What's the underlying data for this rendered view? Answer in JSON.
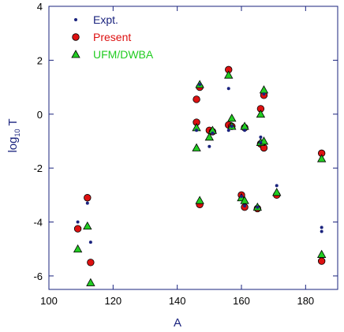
{
  "chart_data": {
    "type": "scatter",
    "xlabel": "A",
    "ylabel_main": "log",
    "ylabel_sub": "10",
    "ylabel_end": " T",
    "xlim": [
      100,
      190
    ],
    "ylim": [
      -6.5,
      4
    ],
    "xticks": [
      100,
      120,
      140,
      160,
      180
    ],
    "yticks": [
      -6,
      -4,
      -2,
      0,
      2,
      4
    ],
    "grid": false,
    "legend_position": "top-left",
    "series": [
      {
        "name": "Expt.",
        "marker": "small-dot",
        "color": "#1a237e",
        "text_color": "#1a237e",
        "points": [
          [
            109,
            -4.0
          ],
          [
            112,
            -3.3
          ],
          [
            113,
            -4.75
          ],
          [
            146,
            -0.6
          ],
          [
            147,
            1.1
          ],
          [
            150,
            -1.2
          ],
          [
            151,
            -0.7
          ],
          [
            156,
            0.95
          ],
          [
            156,
            -0.6
          ],
          [
            157,
            -0.45
          ],
          [
            160,
            -3.05
          ],
          [
            161,
            -0.6
          ],
          [
            161,
            -3.4
          ],
          [
            165,
            -3.45
          ],
          [
            166,
            -0.85
          ],
          [
            166,
            -1.05
          ],
          [
            167,
            0.75
          ],
          [
            171,
            -2.65
          ],
          [
            185,
            -4.2
          ],
          [
            185,
            -4.35
          ]
        ]
      },
      {
        "name": "Present",
        "marker": "circle",
        "color": "#dd1111",
        "text_color": "#dd1111",
        "points": [
          [
            109,
            -4.25
          ],
          [
            112,
            -3.1
          ],
          [
            113,
            -5.5
          ],
          [
            146,
            0.55
          ],
          [
            146,
            -0.3
          ],
          [
            147,
            1.0
          ],
          [
            147,
            -3.35
          ],
          [
            150,
            -0.6
          ],
          [
            151,
            -0.65
          ],
          [
            156,
            1.65
          ],
          [
            156,
            -0.4
          ],
          [
            157,
            -0.45
          ],
          [
            160,
            -3.0
          ],
          [
            161,
            -0.5
          ],
          [
            161,
            -3.45
          ],
          [
            165,
            -3.5
          ],
          [
            166,
            0.2
          ],
          [
            166,
            -1.1
          ],
          [
            167,
            0.7
          ],
          [
            167,
            -1.25
          ],
          [
            171,
            -3.0
          ],
          [
            185,
            -1.45
          ],
          [
            185,
            -5.45
          ]
        ]
      },
      {
        "name": "UFM/DWBA",
        "marker": "triangle",
        "color": "#22cc22",
        "text_color": "#22cc22",
        "points": [
          [
            109,
            -5.0
          ],
          [
            112,
            -4.15
          ],
          [
            113,
            -6.25
          ],
          [
            146,
            -0.5
          ],
          [
            146,
            -1.25
          ],
          [
            147,
            1.1
          ],
          [
            147,
            -3.2
          ],
          [
            150,
            -0.85
          ],
          [
            151,
            -0.6
          ],
          [
            156,
            1.45
          ],
          [
            157,
            -0.15
          ],
          [
            157,
            -0.45
          ],
          [
            160,
            -3.1
          ],
          [
            161,
            -0.45
          ],
          [
            161,
            -3.2
          ],
          [
            165,
            -3.45
          ],
          [
            166,
            0.0
          ],
          [
            166,
            -1.05
          ],
          [
            167,
            0.9
          ],
          [
            167,
            -1.0
          ],
          [
            171,
            -2.9
          ],
          [
            185,
            -1.65
          ],
          [
            185,
            -5.2
          ]
        ]
      }
    ]
  }
}
